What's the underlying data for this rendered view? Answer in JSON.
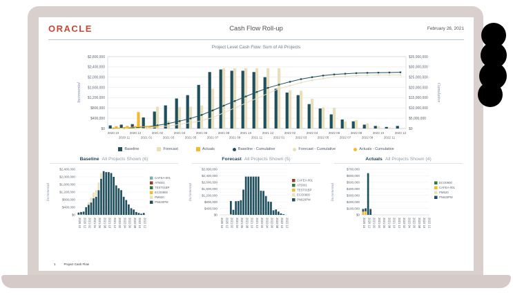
{
  "header": {
    "brand": "ORACLE",
    "title": "Cash Flow Roll-up",
    "date": "February 26, 2021"
  },
  "footer": {
    "page": "1",
    "label": "Project Cash Flow"
  },
  "palette": {
    "baseline_dark_teal": "#1f4e5d",
    "forecast_tan": "#e8dfbd",
    "actuals_yellow": "#f3ba2f",
    "light_teal": "#79b0ac",
    "dark_red": "#9a3b2a",
    "green": "#35793b",
    "oracle_red": "#c74634",
    "header_divider_blue": "#b6c6d2",
    "laptop_bezel_pink": "#d9d0cd",
    "laptop_base_pink": "#d5cac7"
  },
  "chart_data": {
    "main": {
      "type": "bar",
      "subtype": "combo-bar-line",
      "title": "Project Level Cash Flow: Sum of All Projects",
      "left_axis": {
        "label": "Incremental",
        "min": 0,
        "max": 2800000,
        "step": 400000
      },
      "right_axis": {
        "label": "Cumulative",
        "min": 0,
        "max": 35000000,
        "step": 5000000
      },
      "categories": [
        "2020 10",
        "2020 11",
        "2020 12",
        "2021 01",
        "2021 02",
        "2021 03",
        "2021 04",
        "2021 05",
        "2021 06",
        "2021 07",
        "2021 08",
        "2021 09",
        "2021 10",
        "2021 11",
        "2021 12",
        "2022 01",
        "2022 02",
        "2022 03",
        "2022 04",
        "2022 05",
        "2022 06",
        "2022 07",
        "2022 08",
        "2022 09",
        "2022 10",
        "2022 11",
        "2022 12"
      ],
      "bar_series": [
        {
          "name": "Baseline",
          "color": "#1f4e5d",
          "values": [
            120000,
            150000,
            170000,
            430000,
            660000,
            900000,
            1170000,
            1300000,
            1700000,
            2200000,
            2300000,
            2250000,
            2250000,
            2200000,
            2000000,
            1550000,
            1400000,
            1300000,
            950000,
            780000,
            550000,
            350000,
            280000,
            150000,
            100000,
            60000,
            100000
          ]
        },
        {
          "name": "Forecast",
          "color": "#e8dfbd",
          "values": [
            0,
            0,
            0,
            0,
            850000,
            310000,
            840000,
            850000,
            900000,
            1550000,
            2350000,
            2350000,
            2350000,
            2350000,
            2350000,
            2350000,
            1480000,
            1470000,
            1160000,
            820000,
            800000,
            280000,
            330000,
            200000,
            90000,
            40000,
            0
          ]
        },
        {
          "name": "Actuals",
          "color": "#f3ba2f",
          "values": [
            90000,
            100000,
            640000,
            90000,
            0,
            0,
            0,
            0,
            0,
            0,
            0,
            0,
            0,
            0,
            0,
            0,
            0,
            0,
            0,
            0,
            0,
            0,
            0,
            0,
            0,
            0,
            0
          ]
        }
      ],
      "line_series": [
        {
          "name": "Baseline - Cumulative",
          "color": "#1f4e5d",
          "values": [
            120000,
            270000,
            440000,
            870000,
            1530000,
            2430000,
            3600000,
            4900000,
            6600000,
            8800000,
            11100000,
            13350000,
            15600000,
            17800000,
            19800000,
            21350000,
            22750000,
            24050000,
            25000000,
            25780000,
            26330000,
            26680000,
            26960000,
            27110000,
            27210000,
            27270000,
            27370000
          ]
        },
        {
          "name": "Forecast - Cumulative",
          "color": "#e8dfbd",
          "values": [
            0,
            0,
            0,
            0,
            850000,
            1160000,
            2000000,
            2850000,
            3750000,
            5300000,
            7650000,
            10000000,
            12350000,
            14700000,
            17050000,
            19400000,
            20880000,
            22350000,
            23510000,
            24330000,
            25130000,
            25410000,
            25740000,
            25940000,
            26030000,
            26070000,
            26070000
          ]
        },
        {
          "name": "Actuals - Cumulative",
          "color": "#f3ba2f",
          "values": [
            90000,
            190000,
            830000,
            920000,
            920000
          ]
        }
      ]
    },
    "baseline": {
      "type": "bar",
      "subtype": "stacked",
      "title": "Baseline",
      "subtitle": "All Projects Shown (6)",
      "axis": {
        "label": "Incremental",
        "min": 0,
        "max": 2400000,
        "step": 400000
      },
      "categories": [
        "2020 10",
        "2020 11",
        "2020 12",
        "2021 01",
        "2021 02",
        "2021 03",
        "2021 04",
        "2021 05",
        "2021 06",
        "2021 07",
        "2021 08",
        "2021 09",
        "2021 10",
        "2021 11",
        "2021 12",
        "2022 01",
        "2022 02",
        "2022 03",
        "2022 04",
        "2022 05",
        "2022 06",
        "2022 07",
        "2022 08",
        "2022 09",
        "2022 10",
        "2022 11",
        "2022 12"
      ],
      "legend": [
        {
          "label": "CAFEA-001",
          "color": "#79b0ac"
        },
        {
          "label": "AT5001",
          "color": "#9a3b2a"
        },
        {
          "label": "TEST01BP",
          "color": "#35793b"
        },
        {
          "label": "ECO0900",
          "color": "#f3ba2f"
        },
        {
          "label": "PM620",
          "color": "#e8dfbd"
        },
        {
          "label": "PN620PM",
          "color": "#1f4e5d"
        }
      ],
      "series": [
        {
          "name": "ECO0900",
          "color": "#f3ba2f",
          "values": [
            10000,
            15000,
            20000,
            0,
            0,
            0,
            0,
            0,
            0,
            0,
            0,
            0,
            0,
            0,
            0,
            0,
            0,
            0,
            0,
            0,
            0,
            0,
            0,
            0,
            0,
            0,
            0
          ]
        },
        {
          "name": "PN620PM",
          "color": "#1f4e5d",
          "values": [
            110000,
            135000,
            150000,
            400000,
            530000,
            650000,
            870000,
            950000,
            1300000,
            1900000,
            2300000,
            2250000,
            2250000,
            2200000,
            2000000,
            1550000,
            1400000,
            1300000,
            950000,
            780000,
            550000,
            350000,
            280000,
            150000,
            100000,
            60000,
            100000
          ]
        },
        {
          "name": "PM620",
          "color": "#e8dfbd",
          "values": [
            0,
            0,
            0,
            30000,
            130000,
            250000,
            300000,
            350000,
            400000,
            300000,
            0,
            0,
            0,
            0,
            0,
            0,
            0,
            0,
            0,
            0,
            0,
            0,
            0,
            0,
            0,
            0,
            0
          ]
        }
      ]
    },
    "forecast": {
      "type": "bar",
      "subtype": "stacked",
      "title": "Forecast",
      "subtitle": "All Projects Shown (5)",
      "axis": {
        "label": "Incremental",
        "min": 0,
        "max": 2800000,
        "step": 400000
      },
      "categories": [
        "2020 10",
        "2020 11",
        "2020 12",
        "2021 01",
        "2021 02",
        "2021 03",
        "2021 04",
        "2021 05",
        "2021 06",
        "2021 07",
        "2021 08",
        "2021 09",
        "2021 10",
        "2021 11",
        "2021 12",
        "2022 01",
        "2022 02",
        "2022 03",
        "2022 04",
        "2022 05",
        "2022 06",
        "2022 07",
        "2022 08",
        "2022 09",
        "2022 10",
        "2022 11",
        "2022 12"
      ],
      "legend": [
        {
          "label": "CAFEA-001",
          "color": "#9a3b2a"
        },
        {
          "label": "AT5001",
          "color": "#35793b"
        },
        {
          "label": "TEST01BP",
          "color": "#f3ba2f"
        },
        {
          "label": "ECO0900",
          "color": "#e8dfbd"
        },
        {
          "label": "PN620PM",
          "color": "#1f4e5d"
        }
      ],
      "series": [
        {
          "name": "TEST01BP",
          "color": "#f3ba2f",
          "values": [
            0,
            0,
            0,
            0,
            30000,
            0,
            0,
            0,
            0,
            0,
            0,
            0,
            0,
            0,
            0,
            0,
            0,
            0,
            0,
            0,
            0,
            0,
            0,
            0,
            0,
            0,
            0
          ]
        },
        {
          "name": "PN620PM",
          "color": "#1f4e5d",
          "values": [
            0,
            0,
            0,
            0,
            820000,
            310000,
            840000,
            850000,
            900000,
            1550000,
            2350000,
            2350000,
            2350000,
            2350000,
            2350000,
            2350000,
            1480000,
            1470000,
            1160000,
            820000,
            800000,
            280000,
            330000,
            200000,
            90000,
            40000,
            0
          ]
        }
      ]
    },
    "actuals": {
      "type": "bar",
      "subtype": "stacked",
      "title": "Actuals",
      "subtitle": "All Projects Shown (4)",
      "axis": {
        "label": "Incremental",
        "min": 0,
        "max": 700000,
        "step": 100000
      },
      "categories": [
        "2020 10",
        "2020 11",
        "2020 12",
        "2021 01",
        "2021 02",
        "2021 03",
        "2021 04",
        "2021 05",
        "2021 06",
        "2021 07",
        "2021 08",
        "2021 09",
        "2021 10",
        "2021 11",
        "2021 12",
        "2022 01",
        "2022 02",
        "2022 03",
        "2022 04",
        "2022 05",
        "2022 06",
        "2022 07",
        "2022 08",
        "2022 09",
        "2022 10",
        "2022 11",
        "2022 12"
      ],
      "legend": [
        {
          "label": "ECO0900",
          "color": "#35793b"
        },
        {
          "label": "CAFEA-001",
          "color": "#f3ba2f"
        },
        {
          "label": "PM620",
          "color": "#e8dfbd"
        },
        {
          "label": "PN620PM",
          "color": "#1f4e5d"
        }
      ],
      "series": [
        {
          "name": "CAFEA-001",
          "color": "#f3ba2f",
          "values": [
            50000,
            55000,
            0,
            0,
            0,
            0,
            0,
            0,
            0,
            0,
            0,
            0,
            0,
            0,
            0,
            0,
            0,
            0,
            0,
            0,
            0,
            0,
            0,
            0,
            0,
            0,
            0
          ]
        },
        {
          "name": "PN620PM",
          "color": "#1f4e5d",
          "values": [
            40000,
            45000,
            640000,
            90000,
            0,
            0,
            0,
            0,
            0,
            0,
            0,
            0,
            0,
            0,
            0,
            0,
            0,
            0,
            0,
            0,
            0,
            0,
            0,
            0,
            0,
            0,
            0
          ]
        }
      ]
    }
  }
}
